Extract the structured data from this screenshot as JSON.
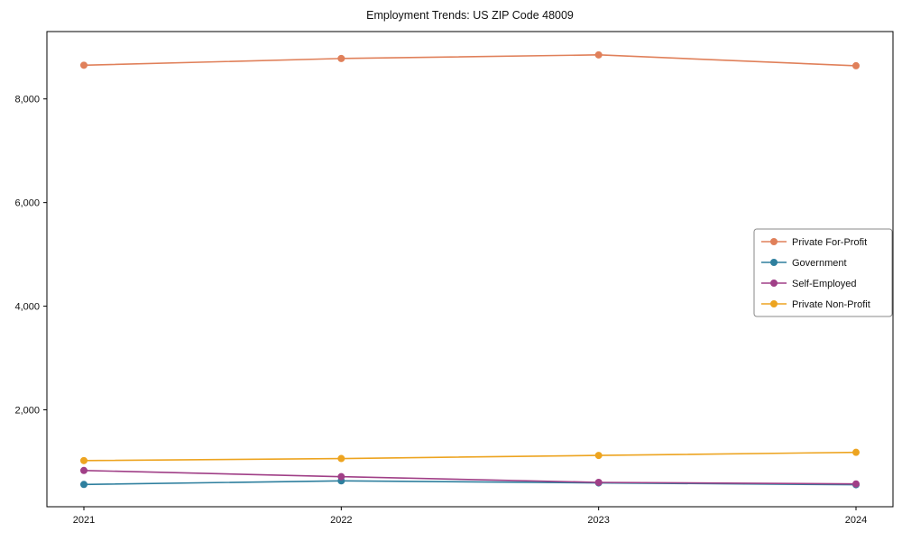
{
  "chart_data": {
    "type": "line",
    "title": "Employment Trends: US ZIP Code 48009",
    "xlabel": "",
    "ylabel": "",
    "grid": false,
    "legend_position": "right",
    "x": [
      2021,
      2022,
      2023,
      2024
    ],
    "xtick_labels": [
      "2021",
      "2022",
      "2023",
      "2024"
    ],
    "yticks": [
      2000,
      4000,
      6000,
      8000
    ],
    "ytick_labels": [
      "2,000",
      "4,000",
      "6,000",
      "8,000"
    ],
    "ylim": [
      130,
      9300
    ],
    "series": [
      {
        "name": "Private For-Profit",
        "color": "#e0805a",
        "values": [
          8650,
          8780,
          8850,
          8640
        ]
      },
      {
        "name": "Government",
        "color": "#2e7f9e",
        "values": [
          560,
          630,
          590,
          555
        ]
      },
      {
        "name": "Self-Employed",
        "color": "#a03f87",
        "values": [
          830,
          710,
          600,
          570
        ]
      },
      {
        "name": "Private Non-Profit",
        "color": "#eda420",
        "values": [
          1020,
          1060,
          1120,
          1180
        ]
      }
    ]
  }
}
